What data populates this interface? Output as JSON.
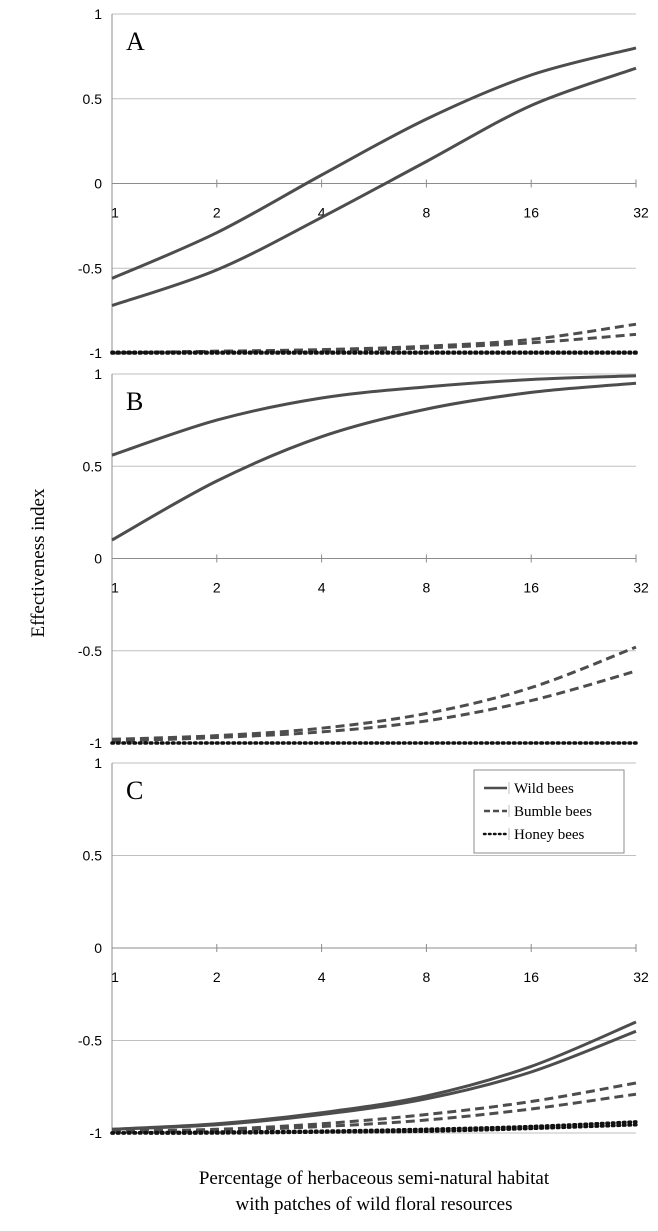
{
  "chart_data": {
    "type": "line",
    "ylabel": "Effectiveness index",
    "xlabel": "Percentage of herbaceous semi-natural habitat\nwith patches of wild floral resources",
    "xscale": "log2",
    "x_ticks": [
      "1",
      "2",
      "4",
      "8",
      "16",
      "32"
    ],
    "y_ticks": [
      "1",
      "0.5",
      "0",
      "-0.5",
      "-1"
    ],
    "ylim": [
      -1,
      1
    ],
    "xlim": [
      1,
      32
    ],
    "grid": "horizontal",
    "legend": {
      "placement": "top-right of panel C",
      "entries": [
        {
          "label": "Wild bees",
          "style": "solid"
        },
        {
          "label": "Bumble bees",
          "style": "dashed"
        },
        {
          "label": "Honey bees",
          "style": "dotted"
        }
      ]
    },
    "colors": {
      "lines": "#4d4d4d",
      "honey": "#111111",
      "grid": "#bfbfbf"
    },
    "panels": [
      {
        "label": "A",
        "x": [
          1,
          2,
          4,
          8,
          16,
          32
        ],
        "series": [
          {
            "group": "Wild bees",
            "style": "solid",
            "values": [
              -0.56,
              -0.29,
              0.05,
              0.38,
              0.64,
              0.8
            ]
          },
          {
            "group": "Wild bees",
            "style": "solid",
            "values": [
              -0.72,
              -0.51,
              -0.2,
              0.13,
              0.46,
              0.68
            ]
          },
          {
            "group": "Bumble bees",
            "style": "dashed",
            "values": [
              -1.0,
              -0.99,
              -0.98,
              -0.96,
              -0.92,
              -0.83
            ]
          },
          {
            "group": "Bumble bees",
            "style": "dashed",
            "values": [
              -1.0,
              -0.99,
              -0.985,
              -0.97,
              -0.94,
              -0.89
            ]
          },
          {
            "group": "Honey bees",
            "style": "dotted",
            "values": [
              -1.0,
              -1.0,
              -1.0,
              -1.0,
              -1.0,
              -1.0
            ]
          },
          {
            "group": "Honey bees",
            "style": "dotted",
            "values": [
              -0.995,
              -0.995,
              -0.995,
              -0.995,
              -0.995,
              -0.995
            ]
          }
        ]
      },
      {
        "label": "B",
        "x": [
          1,
          2,
          4,
          8,
          16,
          32
        ],
        "series": [
          {
            "group": "Wild bees",
            "style": "solid",
            "values": [
              0.56,
              0.75,
              0.87,
              0.93,
              0.97,
              0.99
            ]
          },
          {
            "group": "Wild bees",
            "style": "solid",
            "values": [
              0.1,
              0.42,
              0.66,
              0.81,
              0.9,
              0.95
            ]
          },
          {
            "group": "Bumble bees",
            "style": "dashed",
            "values": [
              -0.98,
              -0.96,
              -0.92,
              -0.84,
              -0.7,
              -0.48
            ]
          },
          {
            "group": "Bumble bees",
            "style": "dashed",
            "values": [
              -0.99,
              -0.97,
              -0.94,
              -0.88,
              -0.77,
              -0.61
            ]
          },
          {
            "group": "Honey bees",
            "style": "dotted",
            "values": [
              -1.0,
              -1.0,
              -1.0,
              -1.0,
              -1.0,
              -1.0
            ]
          }
        ]
      },
      {
        "label": "C",
        "x": [
          1,
          2,
          4,
          8,
          16,
          32
        ],
        "series": [
          {
            "group": "Wild bees",
            "style": "solid",
            "values": [
              -0.98,
              -0.95,
              -0.89,
              -0.8,
              -0.64,
              -0.4
            ]
          },
          {
            "group": "Wild bees",
            "style": "solid",
            "values": [
              -0.98,
              -0.955,
              -0.9,
              -0.815,
              -0.67,
              -0.45
            ]
          },
          {
            "group": "Bumble bees",
            "style": "dashed",
            "values": [
              -0.99,
              -0.98,
              -0.95,
              -0.9,
              -0.83,
              -0.73
            ]
          },
          {
            "group": "Bumble bees",
            "style": "dashed",
            "values": [
              -0.99,
              -0.985,
              -0.965,
              -0.93,
              -0.87,
              -0.79
            ]
          },
          {
            "group": "Honey bees",
            "style": "dotted",
            "values": [
              -1.0,
              -0.995,
              -0.99,
              -0.98,
              -0.965,
              -0.94
            ]
          },
          {
            "group": "Honey bees",
            "style": "dotted",
            "values": [
              -1.0,
              -1.0,
              -0.995,
              -0.99,
              -0.975,
              -0.955
            ]
          }
        ]
      }
    ]
  }
}
